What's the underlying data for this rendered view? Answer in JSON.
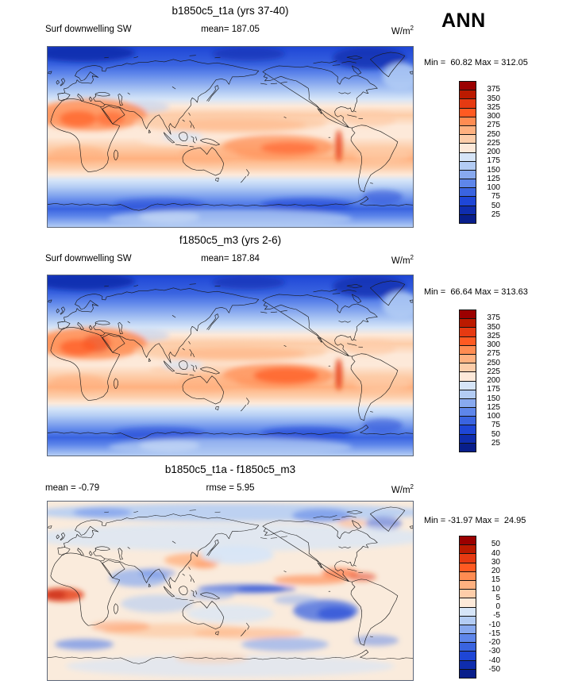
{
  "page": {
    "annotation": "ANN"
  },
  "palette_top_to_bottom": [
    "#9B0000",
    "#BB1A00",
    "#E63A12",
    "#FF5A22",
    "#FF8C52",
    "#FFB180",
    "#FDCDA9",
    "#FDE9D9",
    "#D6E5F8",
    "#B3CCF4",
    "#88A9EF",
    "#5E86EA",
    "#3A64E0",
    "#1E46D6",
    "#0F2DAE",
    "#081E8B"
  ],
  "panels": [
    {
      "title": "b1850c5_t1a (yrs 37-40)",
      "var_label": "Surf downwelling SW",
      "mid_label": "mean= 187.05",
      "units": "W/m",
      "units_exp": "2",
      "stats": "Min =  60.82 Max = 312.05",
      "ticks": [
        "375",
        "350",
        "325",
        "300",
        "275",
        "250",
        "225",
        "200",
        "175",
        "150",
        "125",
        "100",
        "75",
        "50",
        "25"
      ]
    },
    {
      "title": "f1850c5_m3 (yrs 2-6)",
      "var_label": "Surf downwelling SW",
      "mid_label": "mean= 187.84",
      "units": "W/m",
      "units_exp": "2",
      "stats": "Min =  66.64 Max = 313.63",
      "ticks": [
        "375",
        "350",
        "325",
        "300",
        "275",
        "250",
        "225",
        "200",
        "175",
        "150",
        "125",
        "100",
        "75",
        "50",
        "25"
      ]
    },
    {
      "title": "b1850c5_t1a - f1850c5_m3",
      "var_label": "mean =  -0.79",
      "mid_label": "rmse =  5.95",
      "units": "W/m",
      "units_exp": "2",
      "stats": "Min = -31.97 Max =  24.95",
      "ticks": [
        "50",
        "40",
        "30",
        "20",
        "15",
        "10",
        "5",
        "0",
        "-5",
        "-10",
        "-15",
        "-20",
        "-30",
        "-40",
        "-50"
      ]
    }
  ],
  "chart_data": [
    {
      "type": "heatmap",
      "subtype": "filled-contour-world-map",
      "title": "b1850c5_t1a (yrs 37-40)",
      "variable": "Surf downwelling SW",
      "season": "ANN",
      "units": "W/m^2",
      "mean": 187.05,
      "min": 60.82,
      "max": 312.05,
      "contour_levels": [
        25,
        50,
        75,
        100,
        125,
        150,
        175,
        200,
        225,
        250,
        275,
        300,
        325,
        350,
        375
      ],
      "palette_low_to_high": [
        "#081E8B",
        "#0F2DAE",
        "#1E46D6",
        "#3A64E0",
        "#5E86EA",
        "#88A9EF",
        "#B3CCF4",
        "#D6E5F8",
        "#FDE9D9",
        "#FDCDA9",
        "#FFB180",
        "#FF8C52",
        "#FF5A22",
        "#E63A12",
        "#BB1A00",
        "#9B0000"
      ],
      "legend_position": "right",
      "projection": "cylindrical equidistant, Pacific-centered (left edge ~20W)",
      "pattern_summary": "high SW (orange/red 225-300) in subtropics incl. Sahara/Arabia and SE Pacific; pale 175-225 near equator; deep blue (<100) at both poles; Southern Ocean 75-125 band; Antarctica ~125-175"
    },
    {
      "type": "heatmap",
      "subtype": "filled-contour-world-map",
      "title": "f1850c5_m3 (yrs 2-6)",
      "variable": "Surf downwelling SW",
      "season": "ANN",
      "units": "W/m^2",
      "mean": 187.84,
      "min": 66.64,
      "max": 313.63,
      "contour_levels": [
        25,
        50,
        75,
        100,
        125,
        150,
        175,
        200,
        225,
        250,
        275,
        300,
        325,
        350,
        375
      ],
      "palette_low_to_high": [
        "#081E8B",
        "#0F2DAE",
        "#1E46D6",
        "#3A64E0",
        "#5E86EA",
        "#88A9EF",
        "#B3CCF4",
        "#D6E5F8",
        "#FDE9D9",
        "#FDCDA9",
        "#FFB180",
        "#FF8C52",
        "#FF5A22",
        "#E63A12",
        "#BB1A00",
        "#9B0000"
      ],
      "legend_position": "right",
      "projection": "cylindrical equidistant, Pacific-centered (left edge ~20W)",
      "pattern_summary": "same structure as case 1 with slightly stronger subtropical maxima (SE Pacific and Arabia/NE Africa more orange)"
    },
    {
      "type": "heatmap",
      "subtype": "difference-map",
      "title": "b1850c5_t1a - f1850c5_m3",
      "season": "ANN",
      "units": "W/m^2",
      "mean": -0.79,
      "rmse": 5.95,
      "min": -31.97,
      "max": 24.95,
      "contour_levels": [
        -50,
        -40,
        -30,
        -20,
        -15,
        -10,
        -5,
        0,
        5,
        10,
        15,
        20,
        30,
        40,
        50
      ],
      "palette_low_to_high": [
        "#081E8B",
        "#0F2DAE",
        "#1E46D6",
        "#3A64E0",
        "#5E86EA",
        "#88A9EF",
        "#B3CCF4",
        "#D6E5F8",
        "#FDE9D9",
        "#FDCDA9",
        "#FFB180",
        "#FF8C52",
        "#FF5A22",
        "#E63A12",
        "#BB1A00",
        "#9B0000"
      ],
      "legend_position": "right",
      "pattern_summary": "mostly within +/-5; red patch off W Africa (+20..30), strong blue SE Pacific (-20..-30), blue equatorial W Pacific band, red band E Pacific/Caribbean, red NW Pacific, red band Southern Ocean 45-55S, pale blue high latitudes"
    }
  ]
}
